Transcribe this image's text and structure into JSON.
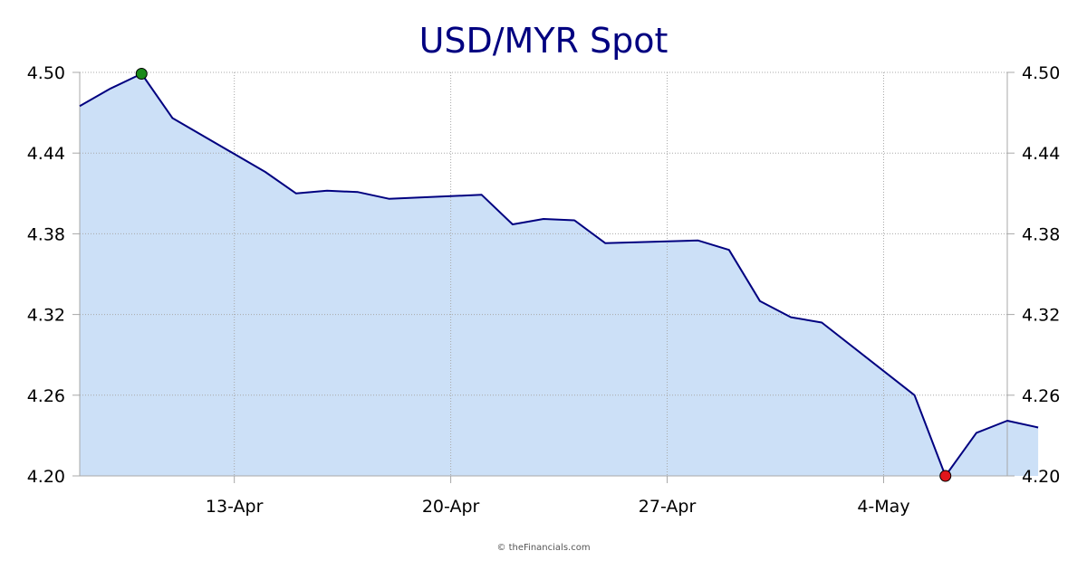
{
  "chart_data": {
    "type": "area",
    "title": "USD/MYR Spot",
    "xlabel": "",
    "ylabel": "",
    "credit": "© theFinancials.com",
    "x_range": [
      "2020-04-08",
      "2020-05-08"
    ],
    "ylim": [
      4.2,
      4.5
    ],
    "y_ticks": [
      "4.20",
      "4.26",
      "4.32",
      "4.38",
      "4.44",
      "4.50"
    ],
    "y_tick_values": [
      4.2,
      4.26,
      4.32,
      4.38,
      4.44,
      4.5
    ],
    "x_ticks": [
      {
        "date": "2020-04-13",
        "label": "13-Apr"
      },
      {
        "date": "2020-04-20",
        "label": "20-Apr"
      },
      {
        "date": "2020-04-27",
        "label": "27-Apr"
      },
      {
        "date": "2020-05-04",
        "label": "4-May"
      }
    ],
    "grid": true,
    "colors": {
      "line": "#000080",
      "fill": "#cce0f7",
      "high_marker": "#1a8a1a",
      "low_marker": "#e0161c"
    },
    "series": [
      {
        "points": [
          {
            "x": "2020-04-08",
            "y": 4.475
          },
          {
            "x": "2020-04-09",
            "y": 4.488
          },
          {
            "x": "2020-04-10",
            "y": 4.499
          },
          {
            "x": "2020-04-11",
            "y": 4.466
          },
          {
            "x": "2020-04-14",
            "y": 4.426
          },
          {
            "x": "2020-04-15",
            "y": 4.41
          },
          {
            "x": "2020-04-16",
            "y": 4.412
          },
          {
            "x": "2020-04-17",
            "y": 4.411
          },
          {
            "x": "2020-04-18",
            "y": 4.406
          },
          {
            "x": "2020-04-21",
            "y": 4.409
          },
          {
            "x": "2020-04-22",
            "y": 4.387
          },
          {
            "x": "2020-04-23",
            "y": 4.391
          },
          {
            "x": "2020-04-24",
            "y": 4.39
          },
          {
            "x": "2020-04-25",
            "y": 4.373
          },
          {
            "x": "2020-04-28",
            "y": 4.375
          },
          {
            "x": "2020-04-29",
            "y": 4.368
          },
          {
            "x": "2020-04-30",
            "y": 4.33
          },
          {
            "x": "2020-05-01",
            "y": 4.318
          },
          {
            "x": "2020-05-02",
            "y": 4.314
          },
          {
            "x": "2020-05-05",
            "y": 4.26
          },
          {
            "x": "2020-05-06",
            "y": 4.2
          },
          {
            "x": "2020-05-07",
            "y": 4.232
          },
          {
            "x": "2020-05-08",
            "y": 4.241
          },
          {
            "x": "2020-05-09",
            "y": 4.236
          }
        ]
      }
    ],
    "high": {
      "x": "2020-04-10",
      "y": 4.499
    },
    "low": {
      "x": "2020-05-06",
      "y": 4.2
    }
  }
}
